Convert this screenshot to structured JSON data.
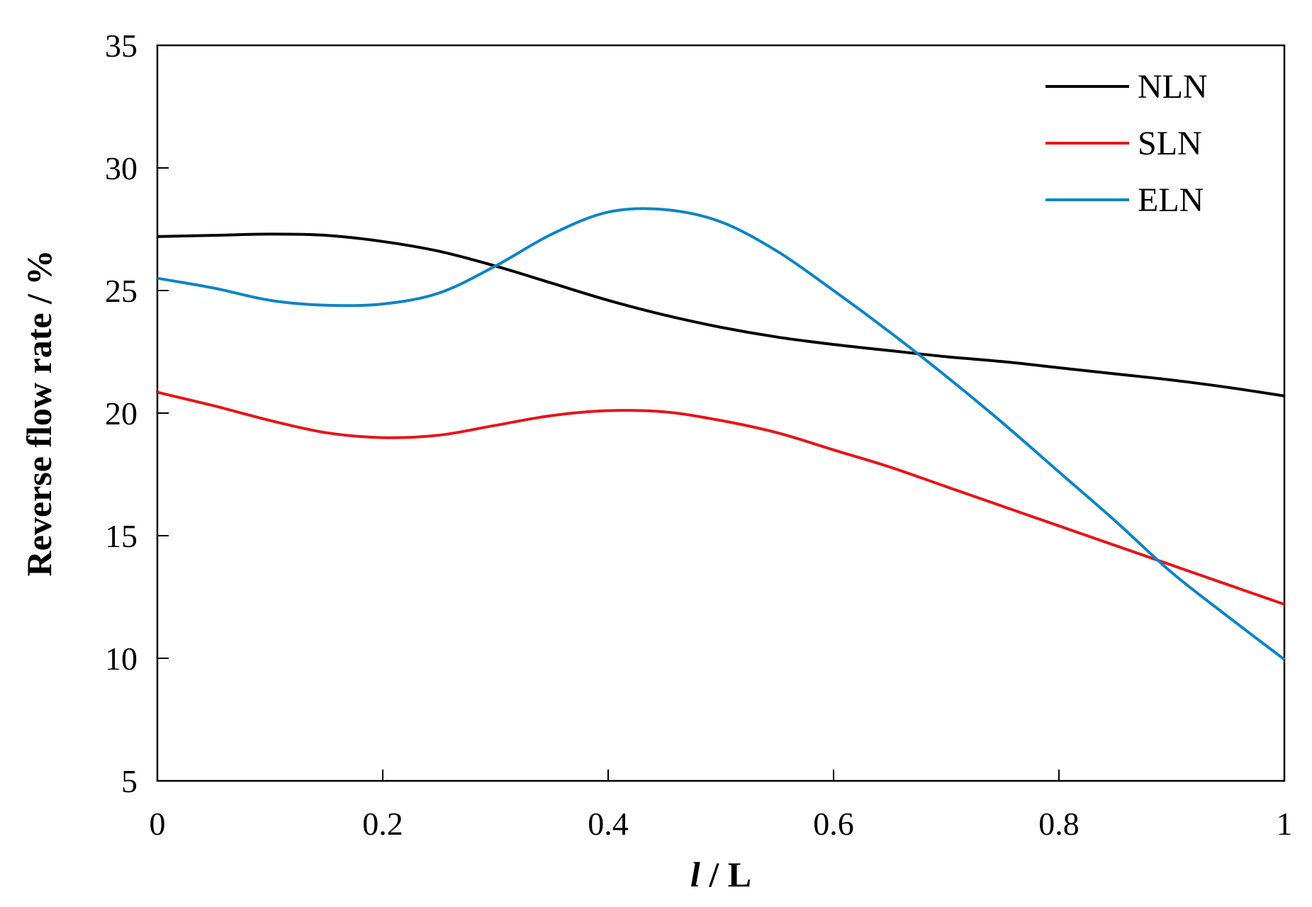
{
  "chart_data": {
    "type": "line",
    "title": "",
    "xlabel_italic": "l",
    "xlabel_rest": " / L",
    "ylabel": "Reverse flow rate / %",
    "xlim": [
      0,
      1
    ],
    "ylim": [
      5,
      35
    ],
    "xticks": [
      0,
      0.2,
      0.4,
      0.6,
      0.8,
      1
    ],
    "xtick_labels": [
      "0",
      "0.2",
      "0.4",
      "0.6",
      "0.8",
      "1"
    ],
    "yticks": [
      5,
      10,
      15,
      20,
      25,
      30,
      35
    ],
    "ytick_labels": [
      "5",
      "10",
      "15",
      "20",
      "25",
      "30",
      "35"
    ],
    "grid": false,
    "legend_position": "top-right",
    "series": [
      {
        "name": "NLN",
        "color": "#000000",
        "x": [
          0,
          0.05,
          0.1,
          0.15,
          0.2,
          0.25,
          0.3,
          0.35,
          0.4,
          0.45,
          0.5,
          0.55,
          0.6,
          0.65,
          0.7,
          0.75,
          0.8,
          0.85,
          0.9,
          0.95,
          1.0
        ],
        "y": [
          27.2,
          27.25,
          27.3,
          27.25,
          27.0,
          26.6,
          26.0,
          25.3,
          24.6,
          24.0,
          23.5,
          23.1,
          22.8,
          22.55,
          22.3,
          22.1,
          21.85,
          21.6,
          21.35,
          21.05,
          20.7
        ]
      },
      {
        "name": "SLN",
        "color": "#e8141b",
        "x": [
          0,
          0.05,
          0.1,
          0.15,
          0.2,
          0.25,
          0.3,
          0.35,
          0.4,
          0.45,
          0.5,
          0.55,
          0.6,
          0.65,
          0.7,
          0.75,
          0.8,
          0.85,
          0.9,
          0.95,
          1.0
        ],
        "y": [
          20.85,
          20.3,
          19.7,
          19.2,
          19.0,
          19.1,
          19.5,
          19.9,
          20.1,
          20.05,
          19.7,
          19.2,
          18.5,
          17.8,
          17.0,
          16.2,
          15.4,
          14.6,
          13.8,
          13.0,
          12.2
        ]
      },
      {
        "name": "ELN",
        "color": "#0b84c8",
        "x": [
          0,
          0.05,
          0.1,
          0.15,
          0.2,
          0.25,
          0.3,
          0.35,
          0.4,
          0.45,
          0.5,
          0.55,
          0.6,
          0.65,
          0.7,
          0.75,
          0.8,
          0.85,
          0.9,
          0.95,
          1.0
        ],
        "y": [
          25.5,
          25.1,
          24.6,
          24.4,
          24.45,
          24.9,
          26.0,
          27.3,
          28.2,
          28.3,
          27.8,
          26.6,
          25.0,
          23.3,
          21.5,
          19.6,
          17.6,
          15.6,
          13.5,
          11.7,
          9.95
        ]
      }
    ]
  }
}
